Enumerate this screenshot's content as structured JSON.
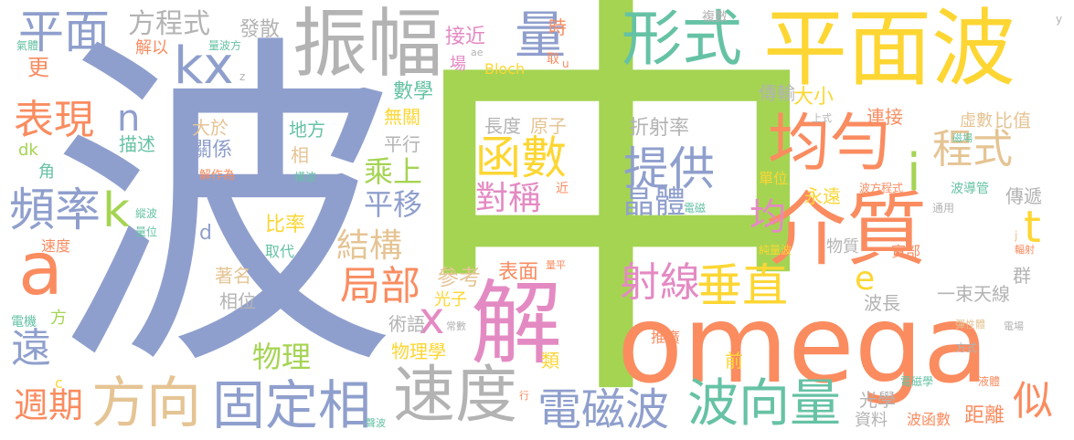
{
  "palette": {
    "green": "#a5d453",
    "blue": "#8f9fcd",
    "orange": "#fa8c60",
    "yellow": "#fdd633",
    "gray": "#b3b3b3",
    "pink": "#e48ac3",
    "teal": "#66c2a5",
    "tan": "#e5c494"
  },
  "words": {
    "zhong": "中",
    "bo": "波",
    "omega": "omega",
    "jie": "解",
    "jiezhi": "介質",
    "pingmianbo": "平面波",
    "zhenfu": "振幅",
    "junyun": "均勻",
    "xingshi": "形式",
    "sudu": "速度",
    "fangxiang": "方向",
    "guding": "固定相",
    "bochangliang": "波向量",
    "dianci": "電磁波",
    "a": "a",
    "kx": "kx",
    "liang": "量",
    "hanshu": "函數",
    "tigong": "提供",
    "pinlv": "頻率",
    "pingmian": "平面",
    "chuizhi": "垂直",
    "shexian": "射線",
    "jubu": "局部",
    "biaoxian": "表現",
    "chengshi": "程式",
    "t": "t",
    "i": "i",
    "k": "k",
    "yuan": "遠",
    "zhouqi": "週期",
    "fangchengshi": "方程式",
    "duichen": "對稱",
    "jingti": "晶體",
    "jun": "均",
    "jiegou": "結構",
    "pingyi": "平移",
    "chengshang": "乘上",
    "sishi": "似",
    "x": "x",
    "e": "e",
    "n": "n",
    "wuli": "物理",
    "biaomian": "表面",
    "cankao": "參考",
    "shuxue": "數學",
    "fashe": "發散",
    "jiejin": "接近",
    "changdu": "長度",
    "yuanzi": "原子",
    "zheshelv": "折射率",
    "chuanshu": "傳輸",
    "daxiao": "大小",
    "wuguan": "無關",
    "pingxing": "平行",
    "xiangguan": "相",
    "guanxi": "關係",
    "difang": "地方",
    "dayu": "大於",
    "miaoshu": "描述",
    "geng": "更",
    "jiao": "角",
    "dk": "dk",
    "sudu2": "速度",
    "bilv": "比率",
    "d": "d",
    "quxiao": "取代",
    "zhuming": "著名",
    "xiangwei": "相位",
    "shuyu": "術語",
    "guangzi": "光子",
    "wulixue": "物理學",
    "lei": "類",
    "qian": "前",
    "tuiguang": "推廣",
    "guangxue": "光學",
    "ziliao": "資料",
    "bohanshu": "波函數",
    "juli": "距離",
    "yishu": "一束天線",
    "bochang": "波長",
    "qun": "群",
    "chuandi": "傳遞",
    "yongyuan": "永遠",
    "danwei": "單位",
    "lianjie": "連接",
    "xushu": "虛數",
    "bizhi": "比值",
    "wuzhi": "物質",
    "shibu": "實部",
    "bloch": "Bloch",
    "shi": "時",
    "chang": "場",
    "jieyi": "解以",
    "fang": "方",
    "c": "c",
    "dianji": "電機",
    "fushu": "複數",
    "y": "y",
    "qiti": "氣體",
    "liangbofang": "量波方",
    "z": "z",
    "u": "u",
    "qu": "取",
    "liangwei": "量位",
    "zongbo": "縱波",
    "hengbo": "橫波",
    "jiezuowei": "解作為",
    "jin": "近",
    "dianci2": "電磁",
    "tongyong": "通用",
    "chunliangbo": "純量波",
    "shangshi": "上式",
    "cichang": "磁場",
    "bofangchengshi": "波方程式",
    "bodaoguan": "波導管",
    "j": "j",
    "fushe": "輻射",
    "tanxingti": "彈性體",
    "dianchang": "電場",
    "fangshi": "方式",
    "diancixue": "電磁學",
    "yeti": "液體",
    "changshu": "常數",
    "liangping": "量平",
    "xiang": "行",
    "ae": "ae",
    "shengbo": "聲波"
  }
}
